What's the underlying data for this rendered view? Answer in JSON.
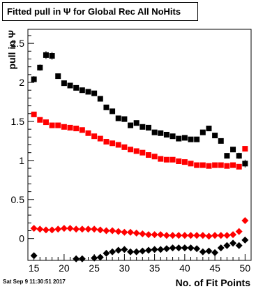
{
  "chart_data": {
    "type": "scatter",
    "title": "Fitted pull in  Ψ  for Global Rec All NoHits",
    "xlabel": "No. of Fit Points",
    "ylabel": "pull in Ψ",
    "xlim": [
      14,
      51
    ],
    "ylim": [
      -0.28,
      2.68
    ],
    "x_ticks": [
      15,
      20,
      25,
      30,
      35,
      40,
      45,
      50
    ],
    "y_ticks": [
      0,
      0.5,
      1,
      1.5,
      2,
      2.5
    ],
    "y_tick_labels": [
      "0",
      "0.5",
      "1",
      "1.5",
      "2",
      "2.5"
    ],
    "grid": false,
    "series": [
      {
        "color": "#000000",
        "marker": "square",
        "x": [
          15,
          16,
          17,
          18,
          19,
          20,
          21,
          22,
          23,
          24,
          25,
          26,
          27,
          28,
          29,
          30,
          31,
          32,
          33,
          34,
          35,
          36,
          37,
          38,
          39,
          40,
          41,
          42,
          43,
          44,
          45,
          46,
          47,
          48,
          49,
          50
        ],
        "y": [
          2.04,
          2.19,
          2.35,
          2.34,
          2.08,
          1.99,
          1.96,
          1.93,
          1.9,
          1.88,
          1.86,
          1.79,
          1.68,
          1.63,
          1.54,
          1.53,
          1.45,
          1.48,
          1.43,
          1.42,
          1.36,
          1.35,
          1.33,
          1.31,
          1.28,
          1.29,
          1.27,
          1.27,
          1.36,
          1.41,
          1.32,
          1.25,
          1.06,
          1.14,
          1.06,
          0.96
        ],
        "yerr": [
          0.04,
          0.04,
          0.05,
          0.05,
          0.03,
          0.02,
          0.02,
          0.02,
          0.02,
          0.02,
          0.02,
          0.02,
          0.02,
          0.02,
          0.02,
          0.02,
          0.02,
          0.02,
          0.02,
          0.02,
          0.02,
          0.02,
          0.02,
          0.02,
          0.02,
          0.02,
          0.02,
          0.02,
          0.02,
          0.02,
          0.02,
          0.03,
          0.03,
          0.03,
          0.04,
          0.05
        ]
      },
      {
        "color": "#ff0000",
        "marker": "square",
        "x": [
          15,
          16,
          17,
          18,
          19,
          20,
          21,
          22,
          23,
          24,
          25,
          26,
          27,
          28,
          29,
          30,
          31,
          32,
          33,
          34,
          35,
          36,
          37,
          38,
          39,
          40,
          41,
          42,
          43,
          44,
          45,
          46,
          47,
          48,
          49,
          50
        ],
        "y": [
          1.59,
          1.52,
          1.49,
          1.45,
          1.45,
          1.43,
          1.42,
          1.41,
          1.39,
          1.35,
          1.31,
          1.28,
          1.24,
          1.22,
          1.2,
          1.17,
          1.14,
          1.12,
          1.1,
          1.07,
          1.05,
          1.02,
          1.01,
          1.01,
          0.99,
          0.98,
          0.96,
          0.94,
          0.94,
          0.93,
          0.94,
          0.94,
          0.93,
          0.94,
          0.92,
          1.15
        ],
        "yerr": [
          0.02,
          0.02,
          0.01,
          0.01,
          0.01,
          0.01,
          0.01,
          0.01,
          0.01,
          0.01,
          0.01,
          0.01,
          0.01,
          0.01,
          0.01,
          0.01,
          0.01,
          0.01,
          0.01,
          0.01,
          0.01,
          0.01,
          0.01,
          0.01,
          0.01,
          0.01,
          0.01,
          0.01,
          0.01,
          0.01,
          0.01,
          0.01,
          0.01,
          0.01,
          0.02,
          0.03
        ]
      },
      {
        "color": "#ff0000",
        "marker": "diamond",
        "x": [
          15,
          16,
          17,
          18,
          19,
          20,
          21,
          22,
          23,
          24,
          25,
          26,
          27,
          28,
          29,
          30,
          31,
          32,
          33,
          34,
          35,
          36,
          37,
          38,
          39,
          40,
          41,
          42,
          43,
          44,
          45,
          46,
          47,
          48,
          49,
          50
        ],
        "y": [
          0.13,
          0.12,
          0.11,
          0.11,
          0.12,
          0.13,
          0.13,
          0.12,
          0.12,
          0.12,
          0.12,
          0.11,
          0.1,
          0.1,
          0.09,
          0.08,
          0.08,
          0.07,
          0.06,
          0.05,
          0.05,
          0.05,
          0.04,
          0.04,
          0.04,
          0.04,
          0.04,
          0.04,
          0.04,
          0.03,
          0.04,
          0.04,
          0.04,
          0.05,
          0.09,
          0.23
        ],
        "yerr": [
          0,
          0,
          0,
          0,
          0,
          0,
          0,
          0,
          0,
          0,
          0,
          0,
          0,
          0,
          0,
          0,
          0,
          0,
          0,
          0,
          0,
          0,
          0,
          0,
          0,
          0,
          0,
          0,
          0,
          0,
          0,
          0,
          0,
          0,
          0,
          0
        ]
      },
      {
        "color": "#000000",
        "marker": "diamond",
        "x": [
          15,
          22,
          23,
          25,
          26,
          27,
          28,
          29,
          30,
          31,
          32,
          33,
          34,
          35,
          36,
          37,
          38,
          39,
          40,
          41,
          42,
          43,
          44,
          45,
          46,
          47,
          48,
          49,
          50
        ],
        "y": [
          -0.22,
          -0.26,
          -0.26,
          -0.25,
          -0.24,
          -0.19,
          -0.17,
          -0.15,
          -0.14,
          -0.17,
          -0.17,
          -0.16,
          -0.15,
          -0.14,
          -0.14,
          -0.13,
          -0.12,
          -0.12,
          -0.12,
          -0.12,
          -0.13,
          -0.17,
          -0.16,
          -0.18,
          -0.12,
          -0.09,
          -0.06,
          -0.09,
          -0.02
        ],
        "yerr": [
          0,
          0,
          0,
          0,
          0,
          0,
          0,
          0,
          0,
          0,
          0,
          0,
          0,
          0,
          0,
          0,
          0,
          0,
          0,
          0,
          0,
          0,
          0,
          0,
          0,
          0,
          0,
          0,
          0
        ]
      }
    ]
  },
  "date_stamp": "Sat Sep  9 11:30:51 2017"
}
